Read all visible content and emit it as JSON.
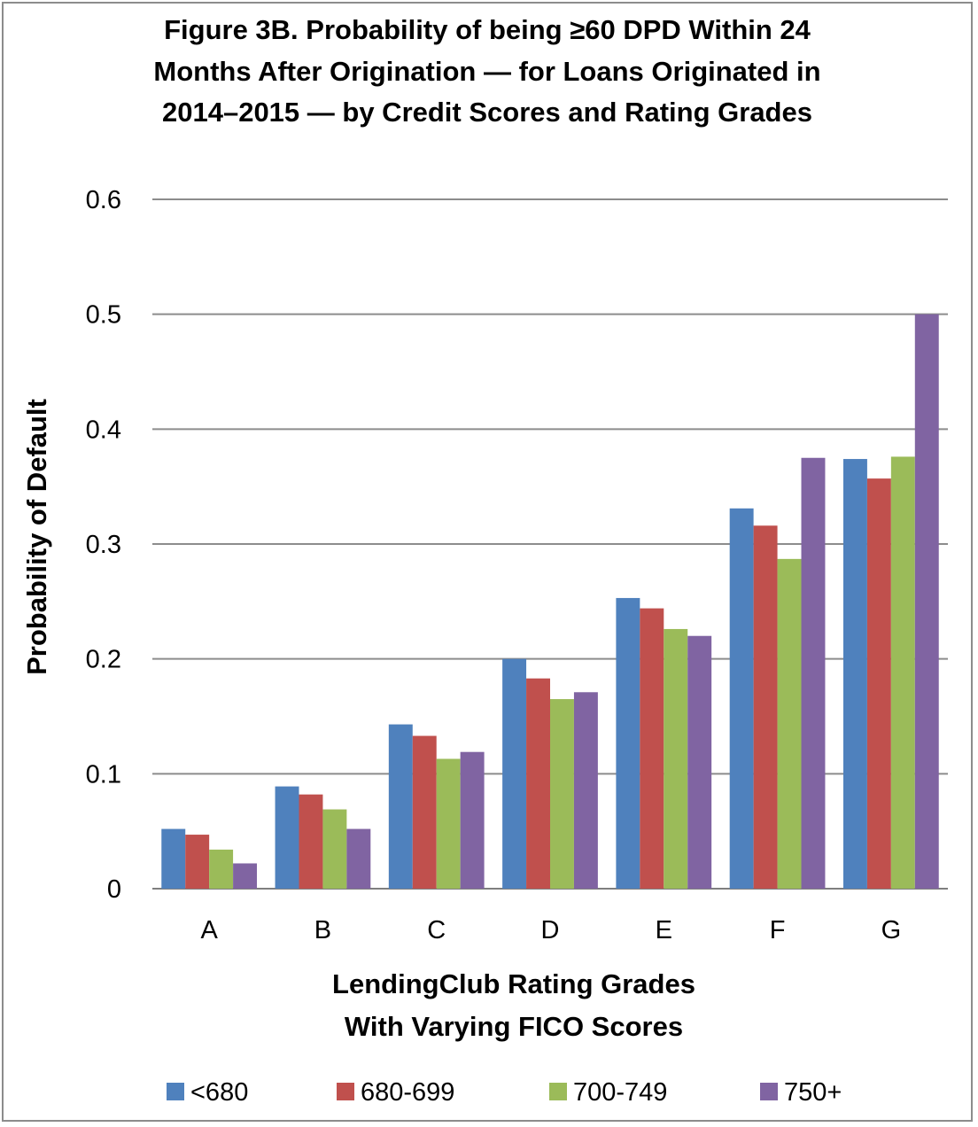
{
  "chart_data": {
    "type": "bar",
    "title_lines": [
      "Figure 3B. Probability of being ≥60 DPD Within 24",
      "Months After Origination — for Loans Originated in",
      "2014–2015 — by Credit Scores and Rating Grades"
    ],
    "ylabel": "Probability of Default",
    "xlabel_lines": [
      "LendingClub Rating Grades",
      "With Varying FICO Scores"
    ],
    "categories": [
      "A",
      "B",
      "C",
      "D",
      "E",
      "F",
      "G"
    ],
    "ylim": [
      0,
      0.6
    ],
    "yticks": [
      0,
      0.1,
      0.2,
      0.3,
      0.4,
      0.5,
      0.6
    ],
    "ytick_labels": [
      "0",
      "0.1",
      "0.2",
      "0.3",
      "0.4",
      "0.5",
      "0.6"
    ],
    "grid": true,
    "legend_position": "bottom",
    "series": [
      {
        "name": "<680",
        "color": "#4f81bd",
        "values": [
          0.052,
          0.089,
          0.143,
          0.2,
          0.253,
          0.331,
          0.374
        ]
      },
      {
        "name": "680-699",
        "color": "#c0504d",
        "values": [
          0.047,
          0.082,
          0.133,
          0.183,
          0.244,
          0.316,
          0.357
        ]
      },
      {
        "name": "700-749",
        "color": "#9bbb59",
        "values": [
          0.034,
          0.069,
          0.113,
          0.165,
          0.226,
          0.287,
          0.376
        ]
      },
      {
        "name": "750+",
        "color": "#8064a2",
        "values": [
          0.022,
          0.052,
          0.119,
          0.171,
          0.22,
          0.375,
          0.5
        ]
      }
    ]
  }
}
